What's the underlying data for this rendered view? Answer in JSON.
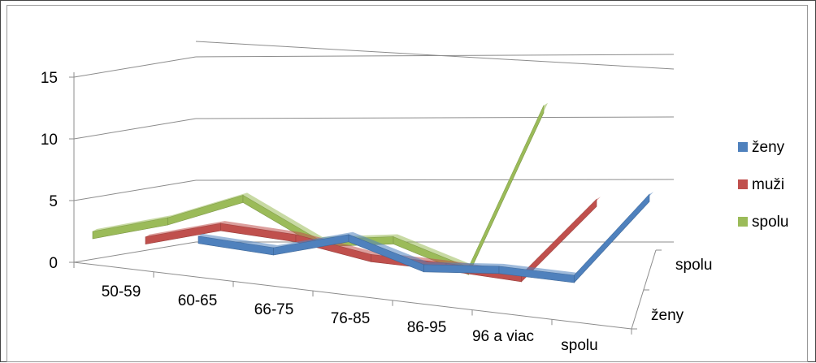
{
  "chart_data": {
    "type": "line",
    "title": "",
    "xlabel": "",
    "ylabel": "",
    "categories": [
      "50-59",
      "60-65",
      "66-75",
      "76-85",
      "86-95",
      "96 a viac",
      "spolu"
    ],
    "depth_categories": [
      "ženy",
      "spolu"
    ],
    "ylim": [
      0,
      15
    ],
    "yticks": [
      "0",
      "5",
      "10",
      "15"
    ],
    "grid": true,
    "legend_position": "right",
    "series": [
      {
        "name": "ženy",
        "color": "#4F81BD",
        "values": [
          1,
          0.5,
          2,
          0,
          0.3,
          0,
          7
        ]
      },
      {
        "name": "muži",
        "color": "#C0504D",
        "values": [
          1.5,
          3,
          2.5,
          1.3,
          1,
          0.5,
          7
        ]
      },
      {
        "name": "spolu",
        "color": "#9BBB59",
        "values": [
          2.5,
          4,
          6.2,
          3,
          3.6,
          1.5,
          15
        ]
      }
    ]
  }
}
